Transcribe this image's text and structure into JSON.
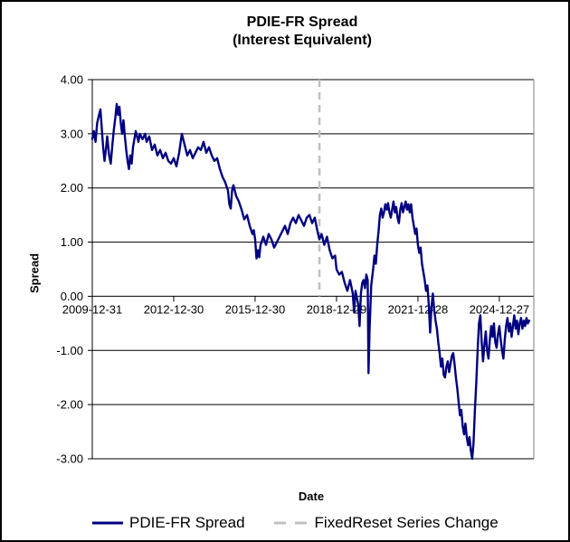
{
  "title": {
    "line1": "PDIE-FR Spread",
    "line2": "(Interest Equivalent)"
  },
  "axes": {
    "y_title": "Spread",
    "x_title": "Date"
  },
  "legend": {
    "series_label": "PDIE-FR Spread",
    "change_label": "FixedReset Series Change"
  },
  "colors": {
    "series": "#000080",
    "series_change": "#c0c0c0",
    "grid": "#000000",
    "plot_border_right": "#808080",
    "axis": "#000000",
    "text": "#000000",
    "background": "#ffffff"
  },
  "chart_data": {
    "type": "line",
    "title": "PDIE-FR Spread (Interest Equivalent)",
    "xlabel": "Date",
    "ylabel": "Spread",
    "ylim": [
      -3,
      4
    ],
    "grid": true,
    "legend_position": "bottom",
    "y_ticks": [
      {
        "v": 4,
        "label": "4.00"
      },
      {
        "v": 3,
        "label": "3.00"
      },
      {
        "v": 2,
        "label": "2.00"
      },
      {
        "v": 1,
        "label": "1.00"
      },
      {
        "v": 0,
        "label": "0.00"
      },
      {
        "v": -1,
        "label": "-1.00"
      },
      {
        "v": -2,
        "label": "-2.00"
      },
      {
        "v": -3,
        "label": "-3.00"
      }
    ],
    "x_ticks": [
      {
        "t": 0,
        "label": "2009-12-31"
      },
      {
        "t": 3,
        "label": "2012-12-30"
      },
      {
        "t": 6,
        "label": "2015-12-30"
      },
      {
        "t": 9,
        "label": "2018-12-29"
      },
      {
        "t": 12,
        "label": "2021-12-28"
      },
      {
        "t": 15,
        "label": "2024-12-27"
      }
    ],
    "t_unit": "years since 2009-12-31",
    "t_range": [
      0,
      16.27
    ],
    "series_change_t": 8.37,
    "series": [
      {
        "name": "PDIE-FR Spread",
        "points": [
          [
            0,
            2.9
          ],
          [
            0.06,
            3.05
          ],
          [
            0.12,
            2.85
          ],
          [
            0.18,
            3.2
          ],
          [
            0.25,
            3.35
          ],
          [
            0.3,
            3.45
          ],
          [
            0.35,
            3.1
          ],
          [
            0.4,
            2.75
          ],
          [
            0.45,
            2.5
          ],
          [
            0.5,
            2.7
          ],
          [
            0.55,
            2.95
          ],
          [
            0.62,
            2.6
          ],
          [
            0.68,
            2.45
          ],
          [
            0.75,
            2.85
          ],
          [
            0.8,
            3.1
          ],
          [
            0.85,
            3.3
          ],
          [
            0.9,
            3.55
          ],
          [
            0.95,
            3.35
          ],
          [
            1,
            3.5
          ],
          [
            1.05,
            3.2
          ],
          [
            1.1,
            3
          ],
          [
            1.15,
            3.25
          ],
          [
            1.2,
            2.95
          ],
          [
            1.25,
            2.7
          ],
          [
            1.3,
            2.5
          ],
          [
            1.35,
            2.35
          ],
          [
            1.4,
            2.6
          ],
          [
            1.45,
            2.45
          ],
          [
            1.5,
            2.75
          ],
          [
            1.55,
            2.9
          ],
          [
            1.6,
            3.05
          ],
          [
            1.7,
            2.85
          ],
          [
            1.75,
            3
          ],
          [
            1.85,
            2.9
          ],
          [
            1.95,
            3
          ],
          [
            2,
            2.85
          ],
          [
            2.1,
            2.95
          ],
          [
            2.2,
            2.7
          ],
          [
            2.3,
            2.8
          ],
          [
            2.4,
            2.6
          ],
          [
            2.5,
            2.7
          ],
          [
            2.6,
            2.55
          ],
          [
            2.7,
            2.65
          ],
          [
            2.8,
            2.5
          ],
          [
            2.9,
            2.45
          ],
          [
            3,
            2.55
          ],
          [
            3.1,
            2.4
          ],
          [
            3.2,
            2.65
          ],
          [
            3.3,
            3
          ],
          [
            3.4,
            2.8
          ],
          [
            3.5,
            2.6
          ],
          [
            3.6,
            2.7
          ],
          [
            3.7,
            2.55
          ],
          [
            3.8,
            2.65
          ],
          [
            3.9,
            2.75
          ],
          [
            4,
            2.7
          ],
          [
            4.1,
            2.85
          ],
          [
            4.2,
            2.65
          ],
          [
            4.3,
            2.75
          ],
          [
            4.4,
            2.6
          ],
          [
            4.5,
            2.5
          ],
          [
            4.6,
            2.55
          ],
          [
            4.7,
            2.35
          ],
          [
            4.8,
            2.2
          ],
          [
            4.9,
            2.1
          ],
          [
            5,
            1.95
          ],
          [
            5.05,
            1.7
          ],
          [
            5.1,
            1.62
          ],
          [
            5.15,
            1.95
          ],
          [
            5.2,
            2.05
          ],
          [
            5.3,
            1.85
          ],
          [
            5.4,
            1.75
          ],
          [
            5.5,
            1.6
          ],
          [
            5.6,
            1.42
          ],
          [
            5.7,
            1.5
          ],
          [
            5.8,
            1.3
          ],
          [
            5.9,
            1.15
          ],
          [
            5.95,
            1.22
          ],
          [
            6,
            1.05
          ],
          [
            6.05,
            0.7
          ],
          [
            6.1,
            0.85
          ],
          [
            6.15,
            0.72
          ],
          [
            6.2,
            0.95
          ],
          [
            6.3,
            1.1
          ],
          [
            6.4,
            0.95
          ],
          [
            6.5,
            1.15
          ],
          [
            6.6,
            1.05
          ],
          [
            6.7,
            0.9
          ],
          [
            6.8,
            1
          ],
          [
            6.9,
            1.1
          ],
          [
            7,
            1.2
          ],
          [
            7.1,
            1.3
          ],
          [
            7.2,
            1.15
          ],
          [
            7.3,
            1.35
          ],
          [
            7.4,
            1.45
          ],
          [
            7.5,
            1.35
          ],
          [
            7.6,
            1.5
          ],
          [
            7.7,
            1.4
          ],
          [
            7.8,
            1.3
          ],
          [
            7.9,
            1.45
          ],
          [
            8,
            1.5
          ],
          [
            8.1,
            1.35
          ],
          [
            8.2,
            1.45
          ],
          [
            8.3,
            1.2
          ],
          [
            8.37,
            1.05
          ],
          [
            8.45,
            1.15
          ],
          [
            8.55,
            0.95
          ],
          [
            8.65,
            1.1
          ],
          [
            8.75,
            0.85
          ],
          [
            8.85,
            0.7
          ],
          [
            8.95,
            0.75
          ],
          [
            9,
            0.5
          ],
          [
            9.1,
            0.4
          ],
          [
            9.2,
            0.45
          ],
          [
            9.3,
            0.25
          ],
          [
            9.4,
            0.1
          ],
          [
            9.5,
            0.3
          ],
          [
            9.6,
            0.05
          ],
          [
            9.65,
            -0.3
          ],
          [
            9.7,
            0.1
          ],
          [
            9.8,
            -0.15
          ],
          [
            9.85,
            -0.55
          ],
          [
            9.9,
            0.05
          ],
          [
            9.95,
            0.25
          ],
          [
            10,
            0.3
          ],
          [
            10.05,
            0.15
          ],
          [
            10.1,
            0.4
          ],
          [
            10.15,
            0.3
          ],
          [
            10.18,
            -1.42
          ],
          [
            10.22,
            -0.6
          ],
          [
            10.28,
            0.2
          ],
          [
            10.35,
            0.5
          ],
          [
            10.4,
            0.75
          ],
          [
            10.45,
            0.6
          ],
          [
            10.5,
            0.95
          ],
          [
            10.55,
            1.2
          ],
          [
            10.6,
            1.5
          ],
          [
            10.65,
            1.62
          ],
          [
            10.7,
            1.45
          ],
          [
            10.75,
            1.55
          ],
          [
            10.8,
            1.7
          ],
          [
            10.85,
            1.6
          ],
          [
            10.9,
            1.72
          ],
          [
            10.95,
            1.55
          ],
          [
            11,
            1.45
          ],
          [
            11.05,
            1.6
          ],
          [
            11.1,
            1.75
          ],
          [
            11.15,
            1.55
          ],
          [
            11.2,
            1.65
          ],
          [
            11.25,
            1.45
          ],
          [
            11.3,
            1.35
          ],
          [
            11.35,
            1.6
          ],
          [
            11.4,
            1.72
          ],
          [
            11.45,
            1.55
          ],
          [
            11.5,
            1.65
          ],
          [
            11.55,
            1.75
          ],
          [
            11.6,
            1.6
          ],
          [
            11.65,
            1.7
          ],
          [
            11.7,
            1.55
          ],
          [
            11.75,
            1.7
          ],
          [
            11.8,
            1.45
          ],
          [
            11.85,
            1.3
          ],
          [
            11.9,
            1.15
          ],
          [
            11.95,
            1.25
          ],
          [
            12,
            0.95
          ],
          [
            12.05,
            0.8
          ],
          [
            12.1,
            0.9
          ],
          [
            12.15,
            0.6
          ],
          [
            12.2,
            0.45
          ],
          [
            12.25,
            0.3
          ],
          [
            12.3,
            0.1
          ],
          [
            12.35,
            0.2
          ],
          [
            12.4,
            -0.15
          ],
          [
            12.45,
            -0.67
          ],
          [
            12.5,
            -0.2
          ],
          [
            12.55,
            0.05
          ],
          [
            12.6,
            -0.25
          ],
          [
            12.65,
            -0.45
          ],
          [
            12.7,
            -0.6
          ],
          [
            12.75,
            -0.85
          ],
          [
            12.8,
            -1.05
          ],
          [
            12.85,
            -1.3
          ],
          [
            12.9,
            -1.15
          ],
          [
            12.95,
            -1.45
          ],
          [
            13,
            -1.5
          ],
          [
            13.05,
            -1.3
          ],
          [
            13.1,
            -1.2
          ],
          [
            13.15,
            -1.4
          ],
          [
            13.2,
            -1.25
          ],
          [
            13.25,
            -1.1
          ],
          [
            13.3,
            -1.05
          ],
          [
            13.35,
            -1.25
          ],
          [
            13.4,
            -1.5
          ],
          [
            13.45,
            -1.7
          ],
          [
            13.5,
            -1.95
          ],
          [
            13.55,
            -2.2
          ],
          [
            13.6,
            -2.1
          ],
          [
            13.65,
            -2.4
          ],
          [
            13.7,
            -2.55
          ],
          [
            13.75,
            -2.35
          ],
          [
            13.8,
            -2.6
          ],
          [
            13.85,
            -2.75
          ],
          [
            13.9,
            -2.6
          ],
          [
            13.95,
            -2.85
          ],
          [
            14,
            -3
          ],
          [
            14.05,
            -2.7
          ],
          [
            14.1,
            -2.1
          ],
          [
            14.15,
            -1.6
          ],
          [
            14.2,
            -1
          ],
          [
            14.25,
            -0.5
          ],
          [
            14.3,
            -0.35
          ],
          [
            14.35,
            -0.85
          ],
          [
            14.4,
            -1.2
          ],
          [
            14.45,
            -0.9
          ],
          [
            14.5,
            -0.65
          ],
          [
            14.55,
            -1
          ],
          [
            14.6,
            -1.15
          ],
          [
            14.65,
            -0.8
          ],
          [
            14.7,
            -0.55
          ],
          [
            14.75,
            -0.75
          ],
          [
            14.8,
            -0.5
          ],
          [
            14.85,
            -0.85
          ],
          [
            14.9,
            -0.95
          ],
          [
            14.95,
            -0.7
          ],
          [
            15,
            -0.55
          ],
          [
            15.05,
            -0.8
          ],
          [
            15.1,
            -1
          ],
          [
            15.15,
            -1.15
          ],
          [
            15.2,
            -0.8
          ],
          [
            15.25,
            -0.55
          ],
          [
            15.3,
            -0.4
          ],
          [
            15.35,
            -0.65
          ],
          [
            15.4,
            -0.5
          ],
          [
            15.45,
            -0.75
          ],
          [
            15.5,
            -0.55
          ],
          [
            15.55,
            -0.35
          ],
          [
            15.6,
            -0.6
          ],
          [
            15.65,
            -0.45
          ],
          [
            15.7,
            -0.7
          ],
          [
            15.75,
            -0.5
          ],
          [
            15.8,
            -0.4
          ],
          [
            15.85,
            -0.6
          ],
          [
            15.9,
            -0.45
          ],
          [
            15.95,
            -0.55
          ],
          [
            16,
            -0.4
          ],
          [
            16.05,
            -0.5
          ],
          [
            16.1,
            -0.45
          ]
        ]
      }
    ]
  }
}
